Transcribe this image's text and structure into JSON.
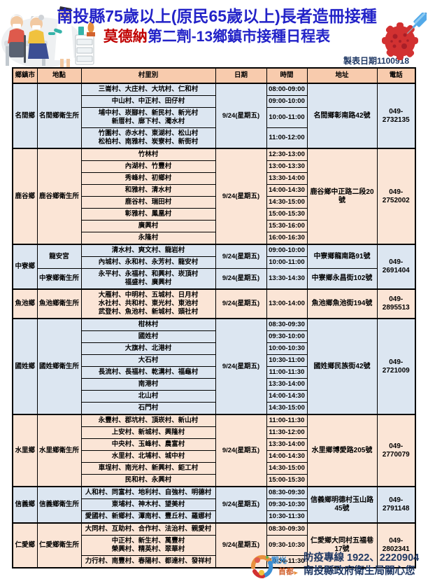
{
  "title": {
    "line1": "南投縣75歲以上(原民65歲以上)長者造冊接種",
    "line2_red": "莫德納",
    "line2_rest": "第二劑-13鄉鎮市接種日程表",
    "made_date": "製表日期1100918"
  },
  "colors": {
    "title_blue": "#2323c8",
    "title_red": "#c00000",
    "header_bg": "#f8cbad",
    "group_blue_bg": "#dce6f1",
    "group_peach_bg": "#fbe5d6",
    "footer_navy": "#1f3864",
    "virus_red": "#d23131",
    "syringe_blue": "#53a9e8"
  },
  "icons": [
    "vaccination-illustration",
    "virus-icon",
    "syringe-icon",
    "tourism-capital-logo"
  ],
  "logo": {
    "text1": "觀光",
    "text2": "首都"
  },
  "footer": {
    "line1": "防疫專線 1922、2220904",
    "line2": "南投縣政府衛生局關心您"
  },
  "table": {
    "headers": [
      "鄉鎮市",
      "地點",
      "村里別",
      "日期",
      "時間",
      "地址",
      "電話"
    ],
    "groups": [
      {
        "township": "名間鄉",
        "tone": "blue",
        "phone": "049-\n2732135",
        "locations": [
          {
            "name": "名間鄉衛生所",
            "date": "9/24(星期五)",
            "address": "名間鄉彰南路42號",
            "rows": [
              {
                "villages": [
                  "三崙村、大庄村、大坑村、仁和村"
                ],
                "time": "08:00-09:00"
              },
              {
                "villages": [
                  "中山村、中正村、田仔村"
                ],
                "time": "09:00-10:00"
              },
              {
                "villages": [
                  "埔中村、崁腳村、新民村、新光村",
                  "新厝村、廍下村、濁水村"
                ],
                "time": "10:00-11:00"
              },
              {
                "villages": [
                  "竹圍村、赤水村、東湖村、松山村",
                  "松柏村、南雅村、炭寮村、新街村"
                ],
                "time": "11:00-12:00"
              }
            ]
          }
        ]
      },
      {
        "township": "鹿谷鄉",
        "tone": "peach",
        "phone": "049-\n2752002",
        "locations": [
          {
            "name": "鹿谷鄉衛生所",
            "date": "9/24(星期五)",
            "address": "鹿谷鄉中正路二段20號",
            "rows": [
              {
                "villages": [
                  "竹林村"
                ],
                "time": "12:30-13:00"
              },
              {
                "villages": [
                  "內湖村、竹豐村"
                ],
                "time": "13:00-13:30"
              },
              {
                "villages": [
                  "秀峰村、初鄉村"
                ],
                "time": "13:30-14:00"
              },
              {
                "villages": [
                  "和雅村、清水村"
                ],
                "time": "14:00-14:30"
              },
              {
                "villages": [
                  "鹿谷村、瑞田村"
                ],
                "time": "14:30-15:00"
              },
              {
                "villages": [
                  "彰雅村、鳳凰村"
                ],
                "time": "15:00-15:30"
              },
              {
                "villages": [
                  "廣興村"
                ],
                "time": "15:30-16:00"
              },
              {
                "villages": [
                  "永隆村"
                ],
                "time": "16:00-16:30"
              }
            ]
          }
        ]
      },
      {
        "township": "中寮鄉",
        "tone": "blue",
        "phone": "049-\n2691404",
        "locations": [
          {
            "name": "龍安宮",
            "date": "9/24(星期五)",
            "address": "中寮鄉龍南路91號",
            "rows": [
              {
                "villages": [
                  "清水村、爽文村、龍岩村"
                ],
                "time": "09:00-10:00"
              },
              {
                "villages": [
                  "內城村、永和村、永芳村、龍安村"
                ],
                "time": "10:00-11:00"
              }
            ]
          },
          {
            "name": "中寮鄉衛生所",
            "date": "9/24(星期五)",
            "address": "中寮鄉永昌街102號",
            "rows": [
              {
                "villages": [
                  "永平村、永福村、和興村、崁頂村",
                  "福盛村、廣興村"
                ],
                "time": "13:30-14:30"
              }
            ]
          }
        ]
      },
      {
        "township": "魚池鄉",
        "tone": "peach",
        "phone": "049-\n2895513",
        "locations": [
          {
            "name": "魚池鄉衛生所",
            "date": "9/24(星期五)",
            "address": "魚池鄉魚池街194號",
            "rows": [
              {
                "villages": [
                  "大雁村、中明村、五城村、日月村",
                  "水社村、共和村、東光村、東池村",
                  "武登村、魚池村、新城村、頭社村"
                ],
                "time": "13:00-14:00"
              }
            ]
          }
        ]
      },
      {
        "township": "國姓鄉",
        "tone": "blue",
        "phone": "049-\n2721009",
        "locations": [
          {
            "name": "國姓鄉衛生所",
            "date": "9/24(星期五)",
            "address": "國姓鄉民族街42號",
            "rows": [
              {
                "villages": [
                  "柑林村"
                ],
                "time": "08:30-09:30"
              },
              {
                "villages": [
                  "國姓村"
                ],
                "time": "09:30-10:00"
              },
              {
                "villages": [
                  "大旗村、北港村"
                ],
                "time": "10:00-10:30"
              },
              {
                "villages": [
                  "大石村"
                ],
                "time": "10:30-11:00"
              },
              {
                "villages": [
                  "長流村、長福村、乾溝村、福龜村"
                ],
                "time": "11:00-11:30"
              },
              {
                "villages": [
                  "南港村"
                ],
                "time": "13:30-14:00"
              },
              {
                "villages": [
                  "北山村"
                ],
                "time": "14:00-14:30"
              },
              {
                "villages": [
                  "石門村"
                ],
                "time": "14:30-15:00"
              }
            ]
          }
        ]
      },
      {
        "township": "水里鄉",
        "tone": "peach",
        "phone": "049-\n2770079",
        "locations": [
          {
            "name": "水里鄉衛生所",
            "date": "9/24(星期五)",
            "address": "水里鄉博愛路205號",
            "rows": [
              {
                "villages": [
                  "永豐村、郡坑村、頂崁村、新山村"
                ],
                "time": "11:00-11:30"
              },
              {
                "villages": [
                  "上安村、新城村、興隆村"
                ],
                "time": "11:30-12:00"
              },
              {
                "villages": [
                  "中央村、玉峰村、農富村"
                ],
                "time": "13:30-14:00"
              },
              {
                "villages": [
                  "水里村、北埔村、城中村"
                ],
                "time": "14:00-14:30"
              },
              {
                "villages": [
                  "車埕村、南光村、新興村、鉅工村"
                ],
                "time": "14:30-15:00"
              },
              {
                "villages": [
                  "民和村、永興村"
                ],
                "time": "15:00-15:30"
              }
            ]
          }
        ]
      },
      {
        "township": "信義鄉",
        "tone": "blue",
        "phone": "049-\n2791148",
        "locations": [
          {
            "name": "信義鄉衛生所",
            "date": "9/24(星期五)",
            "address": "信義鄉明德村玉山路45號",
            "rows": [
              {
                "villages": [
                  "人和村、同富村、地利村、自強村、明德村"
                ],
                "time": "08:30-09:30"
              },
              {
                "villages": [
                  "東埔村、神木村、望美村"
                ],
                "time": "09:30-10:30"
              },
              {
                "villages": [
                  "愛國村、新鄉村、潭南村、豐丘村、羅娜村"
                ],
                "time": "10:30-11:30"
              }
            ]
          }
        ]
      },
      {
        "township": "仁愛鄉",
        "tone": "peach",
        "phone": "049-\n2802341",
        "locations": [
          {
            "name": "仁愛鄉衛生所",
            "date": "9/24(星期五)",
            "address": "仁愛鄉大同村五福巷17號",
            "rows": [
              {
                "villages": [
                  "大同村、互助村、合作村、法治村、親愛村"
                ],
                "time": "08:30-09:30"
              },
              {
                "villages": [
                  "中正村、新生村、萬豐村",
                  "榮興村、精英村、翠華村"
                ],
                "time": "09:30-10:30"
              },
              {
                "villages": [
                  "力行村、南豐村、春陽村、都達村、發祥村"
                ],
                "time": "10:30-11:30"
              }
            ]
          }
        ]
      }
    ]
  }
}
